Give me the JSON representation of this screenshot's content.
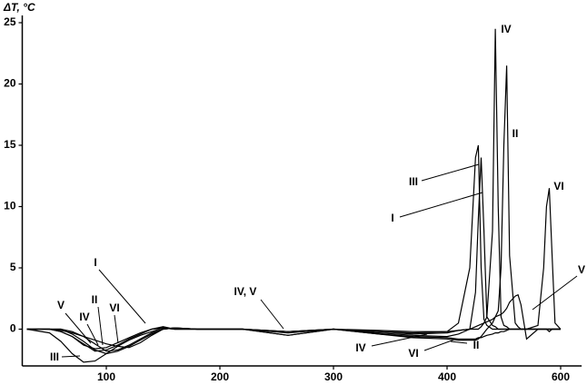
{
  "chart_data": {
    "type": "line",
    "y_label": "ΔT, °C",
    "x": [
      30,
      50,
      60,
      70,
      80,
      90,
      100,
      110,
      120,
      130,
      140,
      150,
      160,
      180,
      220,
      260,
      300,
      340,
      370,
      400,
      420,
      440,
      450,
      455,
      460,
      465,
      470,
      480,
      485,
      490,
      495,
      500,
      505,
      510,
      520,
      525,
      530,
      540,
      560,
      570,
      575,
      580,
      585,
      590,
      600
    ],
    "xlim": [
      26,
      637
    ],
    "xticks": [
      100,
      200,
      300,
      400,
      600
    ],
    "ylim": [
      -3,
      25
    ],
    "yticks": [
      0,
      5,
      10,
      15,
      20,
      25
    ],
    "series": [
      {
        "name": "I",
        "color": "#000000",
        "values": [
          0,
          0,
          -0.1,
          -0.3,
          -0.6,
          -0.9,
          -1.2,
          -1.4,
          -1.5,
          -1.1,
          -0.5,
          0,
          0.1,
          0,
          0,
          -0.2,
          0,
          -0.3,
          -0.5,
          -0.6,
          -0.4,
          0,
          3,
          9,
          14,
          8,
          1,
          0.3,
          0.2,
          0,
          0,
          0,
          0,
          0,
          0,
          0,
          0,
          0,
          0,
          0,
          0,
          0,
          0,
          0,
          0
        ]
      },
      {
        "name": "II",
        "color": "#000000",
        "values": [
          0,
          0,
          0,
          -0.4,
          -1,
          -1.7,
          -2,
          -1.8,
          -1.4,
          -0.9,
          -0.4,
          0,
          0.1,
          0,
          0,
          -0.3,
          0,
          -0.4,
          -0.7,
          -0.8,
          -0.9,
          -0.9,
          -0.9,
          -0.8,
          -0.6,
          -0.3,
          0,
          0.5,
          1,
          1.5,
          5,
          15,
          21.5,
          6,
          0.5,
          0.2,
          0,
          0,
          0,
          0,
          0,
          0,
          0,
          0,
          0
        ]
      },
      {
        "name": "III",
        "color": "#000000",
        "values": [
          0,
          -0.3,
          -1,
          -2,
          -2.7,
          -2.6,
          -2,
          -1.4,
          -0.9,
          -0.5,
          -0.2,
          0.1,
          0,
          0,
          0,
          -0.2,
          0,
          -0.2,
          -0.3,
          -0.2,
          0.5,
          5,
          14,
          15,
          5,
          0.8,
          0.3,
          0,
          0,
          0,
          0,
          0,
          0,
          0,
          0,
          0,
          0,
          0,
          0,
          0,
          0,
          0,
          0,
          0,
          0
        ]
      },
      {
        "name": "IV",
        "color": "#000000",
        "values": [
          0,
          0,
          -0.2,
          -0.6,
          -1.2,
          -1.8,
          -1.7,
          -1.3,
          -0.8,
          -0.4,
          0,
          0.2,
          0,
          0,
          0,
          -0.5,
          0,
          -0.2,
          -0.4,
          -0.3,
          -0.1,
          0,
          0,
          0,
          0.2,
          0.5,
          1,
          8,
          24.5,
          10,
          1,
          0.3,
          0.2,
          0,
          0,
          0,
          0,
          0,
          0,
          0,
          0,
          -0.2,
          0,
          0,
          0
        ]
      },
      {
        "name": "V",
        "color": "#000000",
        "values": [
          0,
          0,
          -0.2,
          -0.6,
          -1.3,
          -1.6,
          -1.5,
          -1.1,
          -0.7,
          -0.3,
          0,
          0.1,
          0,
          0,
          0,
          -0.5,
          0,
          -0.1,
          -0.2,
          -0.2,
          -0.1,
          0,
          0.2,
          0.3,
          0.4,
          0.5,
          0.6,
          0.8,
          1,
          1.1,
          1.2,
          1.4,
          1.7,
          2.2,
          2.7,
          2.8,
          2,
          -0.8,
          0,
          0,
          0,
          0,
          0,
          0,
          0
        ]
      },
      {
        "name": "VI",
        "color": "#000000",
        "values": [
          0,
          0,
          0,
          -0.2,
          -0.6,
          -1.2,
          -1.8,
          -1.7,
          -1.3,
          -0.8,
          -0.3,
          0,
          0.1,
          0,
          0,
          -0.2,
          0,
          -0.4,
          -0.6,
          -0.7,
          -0.8,
          -0.8,
          -0.8,
          -0.7,
          -0.7,
          -0.6,
          -0.5,
          -0.4,
          -0.3,
          -0.3,
          -0.2,
          -0.2,
          -0.1,
          0,
          0,
          0,
          0,
          0,
          0.3,
          5,
          10,
          11.5,
          6,
          0.5,
          0
        ]
      }
    ],
    "annotations": [
      "I",
      "V",
      "IV",
      "II",
      "VI",
      "III",
      "IV, V",
      "IV",
      "VI",
      "II"
    ]
  }
}
